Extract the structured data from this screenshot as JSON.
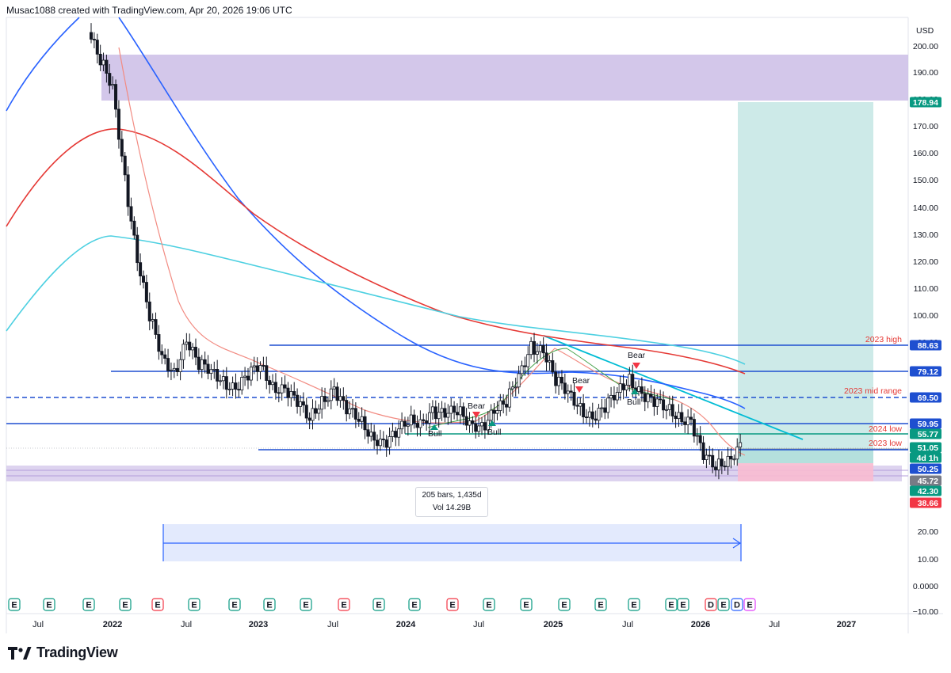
{
  "header": {
    "credit": "Musac1088 created with TradingView.com, Apr 20, 2026 19:06 UTC"
  },
  "brand": {
    "name": "TradingView"
  },
  "colors": {
    "up": "#ffffff",
    "down": "#131722",
    "ma_blue": "#2962ff",
    "ma_red": "#e53935",
    "ma_cyan": "#4dd0e1",
    "ma_pink": "#f28b82",
    "ma_green": "#43a047",
    "level": "#1e4fd0",
    "zone_purple": "#d1c4e9",
    "profit": "#b2dfdb",
    "loss": "#f8bbd0",
    "measure": "#e3eafd"
  },
  "measure_box": {
    "bars_text": "205 bars, 1,435d",
    "vol_text": "Vol 14.29B"
  },
  "chart_data": {
    "type": "candlestick",
    "title": "",
    "currency": "USD",
    "y_axis_ticks": [
      "200.00",
      "190.00",
      "180.00",
      "170.00",
      "160.00",
      "150.00",
      "140.00",
      "130.00",
      "120.00",
      "110.00",
      "100.00",
      "90.00",
      "20.00",
      "10.00",
      "0.0000",
      "−10.00"
    ],
    "x_axis_ticks": [
      "Jul",
      "2022",
      "Jul",
      "2023",
      "Jul",
      "2024",
      "Jul",
      "2025",
      "Jul",
      "2026",
      "Jul",
      "2027"
    ],
    "price_labels": [
      {
        "text": "178.94",
        "value": 178.94,
        "color": "#089981"
      },
      {
        "text": "88.63",
        "value": 88.63,
        "color": "#1e4fd0"
      },
      {
        "text": "79.12",
        "value": 79.12,
        "color": "#1e4fd0"
      },
      {
        "text": "69.50",
        "value": 69.5,
        "color": "#1e4fd0"
      },
      {
        "text": "59.95",
        "value": 59.95,
        "color": "#1e4fd0"
      },
      {
        "text": "55.77",
        "value": 55.77,
        "color": "#089981"
      },
      {
        "text": "51.05",
        "value": 51.05,
        "color": "#089981"
      },
      {
        "text": "4d 1h",
        "value": null,
        "color": "#089981"
      },
      {
        "text": "50.25",
        "value": 50.25,
        "color": "#1e4fd0"
      },
      {
        "text": "45.72",
        "value": 45.72,
        "color": "#787b86"
      },
      {
        "text": "42.30",
        "value": 42.3,
        "color": "#089981"
      },
      {
        "text": "38.66",
        "value": 38.66,
        "color": "#f23645"
      }
    ],
    "levels": [
      {
        "name": "2023 high",
        "value": 88.63,
        "style": "solid"
      },
      {
        "name": "",
        "value": 79.12,
        "style": "solid"
      },
      {
        "name": "2023 mid range",
        "value": 69.5,
        "style": "dashed"
      },
      {
        "name": "2024 low",
        "value": 59.95,
        "style": "solid"
      },
      {
        "name": "2023 low",
        "value": 50.25,
        "style": "solid"
      }
    ],
    "annotations": [
      "Bear",
      "Bear",
      "Bear",
      "Bull",
      "Bull",
      "Bull"
    ],
    "events": [
      "E",
      "E",
      "E",
      "E",
      "E",
      "E",
      "E",
      "E",
      "E",
      "E",
      "E",
      "E",
      "E",
      "E",
      "E",
      "E",
      "E",
      "E",
      "E",
      "E",
      "D",
      "E",
      "D",
      "E"
    ],
    "series": [
      {
        "name": "",
        "approx_points": [
          [
            "2021-05",
            110
          ],
          [
            "2021-08",
            140
          ],
          [
            "2021-11",
            175
          ],
          [
            "2022-04",
            182
          ],
          [
            "2022-07",
            160
          ],
          [
            "2022-10",
            145
          ],
          [
            "2023-01",
            135
          ],
          [
            "2023-07",
            118
          ],
          [
            "2024-01",
            100
          ],
          [
            "2024-07",
            92
          ],
          [
            "2025-01",
            88
          ],
          [
            "2025-07",
            80
          ],
          [
            "2025-12",
            73
          ]
        ]
      },
      {
        "name": "",
        "approx_points": [
          [
            "2021-05",
            130
          ],
          [
            "2021-11",
            160
          ],
          [
            "2022-02",
            240
          ],
          [
            "2022-06",
            170
          ],
          [
            "2022-10",
            110
          ],
          [
            "2023-04",
            95
          ],
          [
            "2023-10",
            90
          ],
          [
            "2024-03",
            82
          ],
          [
            "2024-09",
            77
          ],
          [
            "2025-03",
            74
          ],
          [
            "2025-09",
            70
          ],
          [
            "2026-01",
            62
          ]
        ]
      }
    ],
    "weekly_ohlc_approx": [
      [
        "2021-11",
        205
      ],
      [
        "2021-12",
        195
      ],
      [
        "2022-01",
        185
      ],
      [
        "2022-02",
        150
      ],
      [
        "2022-03",
        120
      ],
      [
        "2022-04",
        100
      ],
      [
        "2022-05",
        85
      ],
      [
        "2022-06",
        78
      ],
      [
        "2022-07",
        90
      ],
      [
        "2022-08",
        82
      ],
      [
        "2022-09",
        80
      ],
      [
        "2022-10",
        75
      ],
      [
        "2022-11",
        72
      ],
      [
        "2022-12",
        78
      ],
      [
        "2023-01",
        82
      ],
      [
        "2023-02",
        73
      ],
      [
        "2023-03",
        72
      ],
      [
        "2023-04",
        68
      ],
      [
        "2023-05",
        62
      ],
      [
        "2023-06",
        68
      ],
      [
        "2023-07",
        72
      ],
      [
        "2023-08",
        65
      ],
      [
        "2023-09",
        62
      ],
      [
        "2023-10",
        55
      ],
      [
        "2023-11",
        52
      ],
      [
        "2023-12",
        56
      ],
      [
        "2024-01",
        61
      ],
      [
        "2024-02",
        60
      ],
      [
        "2024-03",
        64
      ],
      [
        "2024-04",
        63
      ],
      [
        "2024-05",
        65
      ],
      [
        "2024-06",
        60
      ],
      [
        "2024-07",
        58
      ],
      [
        "2024-08",
        64
      ],
      [
        "2024-09",
        68
      ],
      [
        "2024-10",
        78
      ],
      [
        "2024-11",
        88
      ],
      [
        "2024-12",
        86
      ],
      [
        "2025-01",
        76
      ],
      [
        "2025-02",
        72
      ],
      [
        "2025-03",
        65
      ],
      [
        "2025-04",
        61
      ],
      [
        "2025-05",
        66
      ],
      [
        "2025-06",
        72
      ],
      [
        "2025-07",
        76
      ],
      [
        "2025-08",
        70
      ],
      [
        "2025-09",
        68
      ],
      [
        "2025-10",
        66
      ],
      [
        "2025-11",
        62
      ],
      [
        "2025-12",
        60
      ],
      [
        "2026-01",
        48
      ],
      [
        "2026-02",
        44
      ],
      [
        "2026-03",
        46
      ],
      [
        "2026-04",
        51
      ]
    ]
  }
}
